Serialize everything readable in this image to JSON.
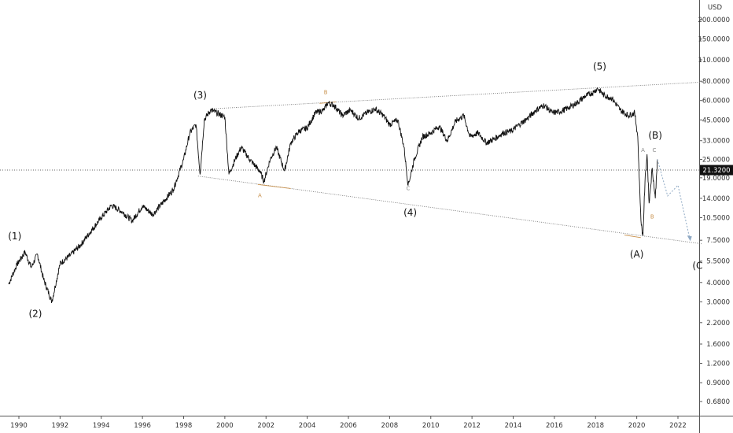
{
  "chart_data": {
    "type": "line",
    "y_scale": "log",
    "currency": "USD",
    "y_axis_unit_label": "USD",
    "y_ticks": [
      "200.0000",
      "150.0000",
      "110.0000",
      "80.0000",
      "60.0000",
      "45.0000",
      "33.0000",
      "25.0000",
      "19.0000",
      "14.0000",
      "10.5000",
      "7.5000",
      "5.5000",
      "4.0000",
      "3.0000",
      "2.2000",
      "1.6000",
      "1.2000",
      "0.9000",
      "0.6800"
    ],
    "y_tick_values": [
      200,
      150,
      110,
      80,
      60,
      45,
      33,
      25,
      19,
      14,
      10.5,
      7.5,
      5.5,
      4.0,
      3.0,
      2.2,
      1.6,
      1.2,
      0.9,
      0.68
    ],
    "x_ticks": [
      "1990",
      "1992",
      "1994",
      "1996",
      "1998",
      "2000",
      "2002",
      "2004",
      "2006",
      "2008",
      "2010",
      "2012",
      "2014",
      "2016",
      "2018",
      "2020",
      "2022"
    ],
    "xlim": [
      1989.4,
      2023.2
    ],
    "current_price": 21.32,
    "current_price_label": "21.3200",
    "series": [
      {
        "x": [
          1989.5,
          1989.9,
          1990.3,
          1990.6,
          1990.9,
          1991.2,
          1991.6,
          1992.0,
          1992.5,
          1993.0,
          1993.5,
          1994.0,
          1994.5,
          1995.0,
          1995.5,
          1996.0,
          1996.5,
          1997.0,
          1997.5,
          1998.0,
          1998.3,
          1998.6,
          1998.8,
          1999.0,
          1999.3,
          1999.6,
          2000.0,
          2000.2,
          2000.5,
          2000.8,
          2001.2,
          2001.7,
          2001.9,
          2002.2,
          2002.5,
          2002.9,
          2003.2,
          2003.6,
          2004.0,
          2004.4,
          2004.8,
          2005.0,
          2005.3,
          2005.7,
          2006.1,
          2006.5,
          2006.9,
          2007.3,
          2007.7,
          2008.0,
          2008.4,
          2008.7,
          2008.9,
          2009.2,
          2009.6,
          2010.0,
          2010.4,
          2010.8,
          2011.2,
          2011.6,
          2011.9,
          2012.3,
          2012.7,
          2013.1,
          2013.5,
          2013.9,
          2014.3,
          2014.7,
          2015.1,
          2015.5,
          2015.9,
          2016.3,
          2016.7,
          2017.1,
          2017.5,
          2017.9,
          2018.1,
          2018.4,
          2018.8,
          2019.2,
          2019.6,
          2019.9,
          2020.05,
          2020.15,
          2020.22,
          2020.3,
          2020.4,
          2020.5,
          2020.6,
          2020.75,
          2020.9,
          2021.0
        ],
        "y": [
          3.9,
          5.2,
          6.3,
          5.0,
          6.1,
          4.2,
          3.0,
          5.3,
          6.0,
          7.0,
          8.6,
          10.5,
          12.6,
          11.5,
          10.0,
          12.5,
          11.0,
          13.2,
          16.0,
          25.0,
          37.0,
          42.0,
          20.0,
          45.0,
          52.0,
          50.0,
          47.0,
          20.0,
          25.0,
          30.0,
          25.0,
          21.0,
          18.0,
          25.0,
          30.0,
          21.0,
          32.0,
          38.0,
          40.0,
          50.0,
          52.0,
          58.0,
          56.0,
          48.0,
          52.0,
          46.0,
          50.0,
          53.0,
          48.0,
          42.0,
          45.0,
          30.0,
          17.0,
          25.0,
          35.0,
          37.0,
          41.0,
          33.0,
          44.0,
          48.0,
          35.0,
          37.0,
          32.0,
          34.0,
          37.0,
          38.0,
          42.0,
          46.0,
          52.0,
          56.0,
          50.0,
          51.0,
          54.0,
          58.0,
          64.0,
          68.0,
          72.0,
          65.0,
          62.0,
          52.0,
          48.0,
          50.0,
          35.0,
          15.0,
          9.4,
          8.0,
          18.0,
          27.0,
          13.0,
          22.0,
          14.0,
          25.0
        ]
      }
    ],
    "annotations": {
      "waves": [
        "(1)",
        "(2)",
        "(3)",
        "(4)",
        "(5)",
        "(A)",
        "(B)",
        "(C"
      ],
      "subwaves": [
        "A",
        "B",
        "C",
        "A",
        "B",
        "C"
      ]
    }
  }
}
